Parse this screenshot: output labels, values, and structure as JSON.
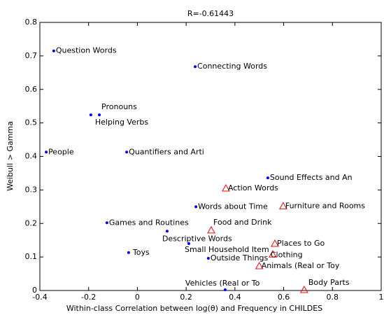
{
  "chart_data": {
    "type": "scatter",
    "title": "R=-0.61443",
    "xlabel": "Within-class Correlation between log(θ) and Frequency in CHILDES",
    "ylabel": "Weibull > Gamma",
    "xlim": [
      -0.4,
      1
    ],
    "ylim": [
      0,
      0.8
    ],
    "xticks": [
      -0.4,
      -0.2,
      0,
      0.2,
      0.4,
      0.6,
      0.8,
      1
    ],
    "yticks": [
      0,
      0.1,
      0.2,
      0.3,
      0.4,
      0.5,
      0.6,
      0.7,
      0.8
    ],
    "series": [
      {
        "color": "#0000ff",
        "marker": "dot",
        "labels": [
          "Question Words",
          "Connecting Words",
          "Pronouns",
          "Helping Verbs",
          "People",
          "Quantifiers and Arti",
          "Sound Effects and An",
          "Words about Time",
          "Games and Routines",
          "Descriptive Words",
          "Small Household Item",
          "Toys",
          "Outside Things",
          "Vehicles (Real or To"
        ],
        "x": [
          -0.343,
          0.237,
          -0.156,
          -0.191,
          -0.374,
          -0.044,
          0.535,
          0.24,
          -0.125,
          0.122,
          0.211,
          -0.036,
          0.291,
          0.36
        ],
        "values": [
          0.715,
          0.668,
          0.524,
          0.524,
          0.413,
          0.413,
          0.336,
          0.25,
          0.202,
          0.177,
          0.14,
          0.113,
          0.096,
          0.002
        ]
      },
      {
        "color": "#ff0000",
        "marker": "triangle",
        "labels": [
          "Action Words",
          "Furniture and Rooms",
          "Food and Drink",
          "Places to Go",
          "Clothing",
          "Animals (Real or Toy",
          "Body Parts"
        ],
        "x": [
          0.363,
          0.598,
          0.303,
          0.564,
          0.555,
          0.5,
          0.684
        ],
        "values": [
          0.305,
          0.252,
          0.18,
          0.14,
          0.108,
          0.073,
          0.002
        ]
      }
    ]
  }
}
